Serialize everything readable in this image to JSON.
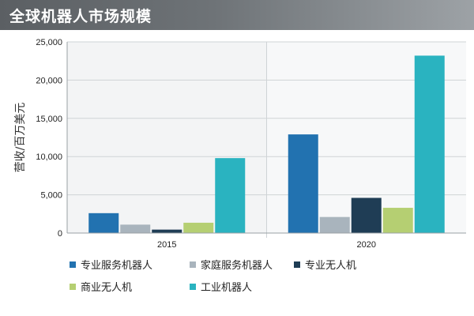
{
  "header": {
    "title": "全球机器人市场规模"
  },
  "chart_data": {
    "type": "bar",
    "title": "全球机器人市场规模",
    "xlabel": "",
    "ylabel": "营收/百万美元",
    "categories": [
      "2015",
      "2020"
    ],
    "ylim": [
      0,
      25000
    ],
    "yticks": [
      0,
      5000,
      10000,
      15000,
      20000,
      25000
    ],
    "ytick_labels": [
      "0",
      "5,000",
      "10,000",
      "15,000",
      "20,000",
      "25,000"
    ],
    "grid": true,
    "legend_position": "bottom",
    "series": [
      {
        "name": "专业服务机器人",
        "color": "#2272b0",
        "values": [
          2600,
          12900
        ]
      },
      {
        "name": "家庭服务机器人",
        "color": "#a9b4bd",
        "values": [
          1100,
          2100
        ]
      },
      {
        "name": "专业无人机",
        "color": "#1f3d55",
        "values": [
          450,
          4600
        ]
      },
      {
        "name": "商业无人机",
        "color": "#b5cf72",
        "values": [
          1350,
          3300
        ]
      },
      {
        "name": "工业机器人",
        "color": "#2ab3c0",
        "values": [
          9800,
          23200
        ]
      }
    ]
  }
}
